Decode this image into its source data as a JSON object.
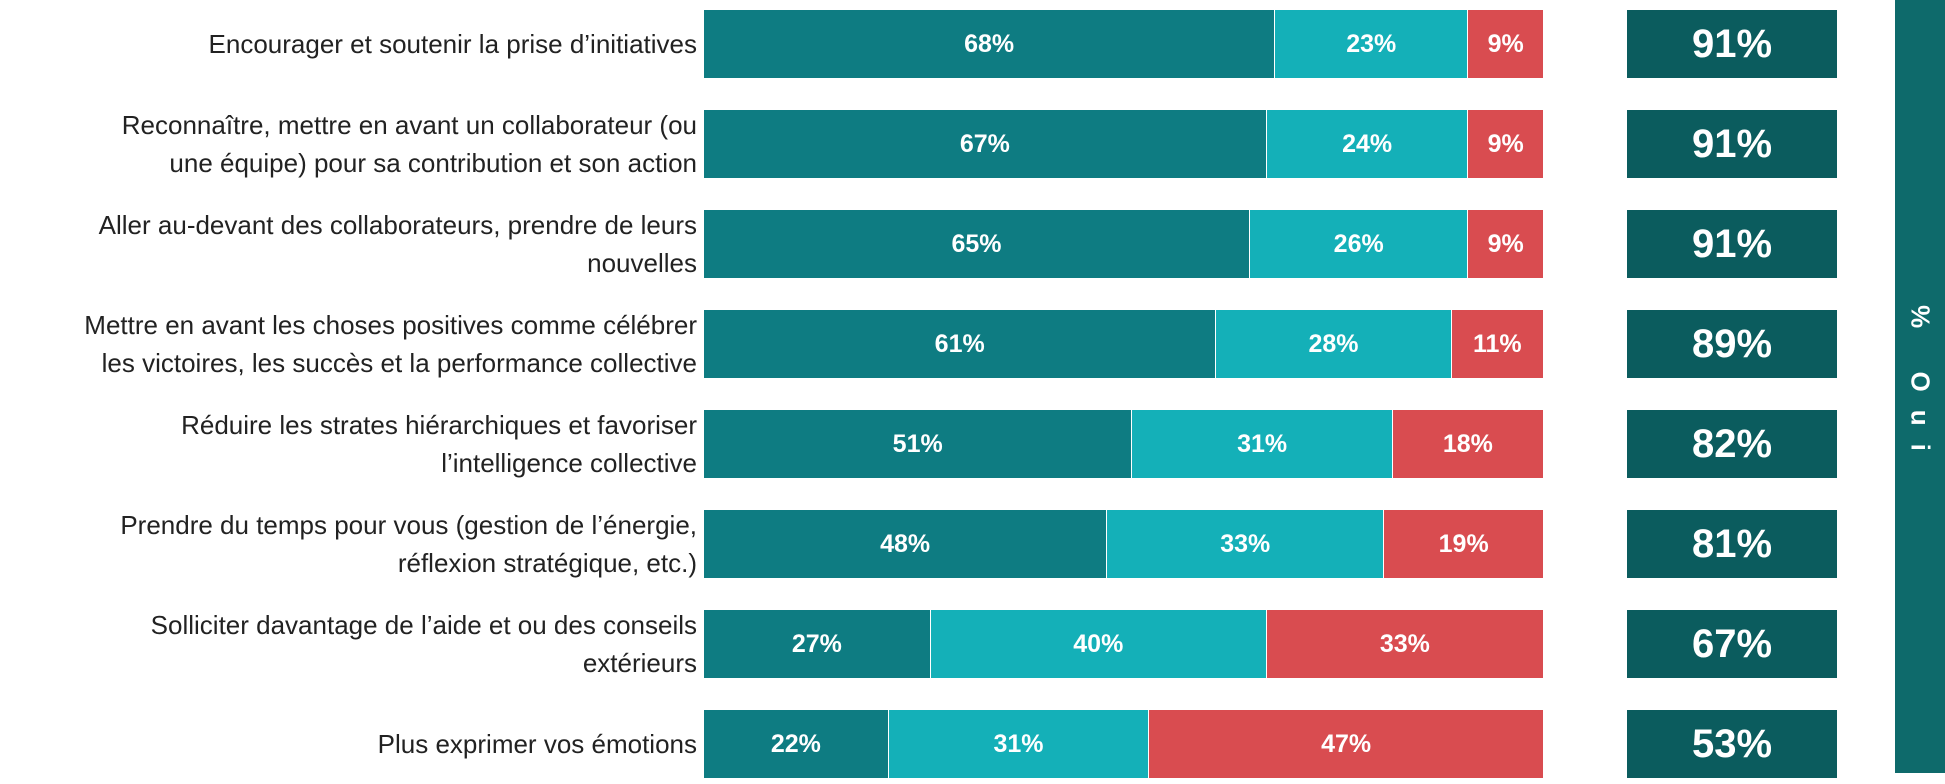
{
  "chart_data": {
    "type": "stacked-bar-horizontal",
    "categories": [
      "Encourager et soutenir la prise d’initiatives",
      "Reconnaître, mettre en avant un collaborateur (ou\nune équipe) pour sa contribution et son action",
      "Aller au-devant des collaborateurs, prendre de leurs\nnouvelles",
      "Mettre en avant les choses positives comme célébrer\nles victoires, les succès et la performance collective",
      "Réduire les strates hiérarchiques et favoriser\nl’intelligence collective",
      "Prendre du temps pour vous (gestion de l’énergie,\nréflexion stratégique, etc.)",
      "Solliciter davantage de l’aide et ou des conseils\nextérieurs",
      "Plus exprimer vos émotions"
    ],
    "series": [
      {
        "color": "#0e7c82",
        "values": [
          68,
          67,
          65,
          61,
          51,
          48,
          27,
          22
        ],
        "value_labels": [
          "68%",
          "67%",
          "65%",
          "61%",
          "51%",
          "48%",
          "27%",
          "22%"
        ]
      },
      {
        "color": "#14b0b8",
        "values": [
          23,
          24,
          26,
          28,
          31,
          33,
          40,
          31
        ],
        "value_labels": [
          "23%",
          "24%",
          "26%",
          "28%",
          "31%",
          "33%",
          "40%",
          "31%"
        ]
      },
      {
        "color": "#d94c50",
        "values": [
          9,
          9,
          9,
          11,
          18,
          19,
          33,
          47
        ],
        "value_labels": [
          "9%",
          "9%",
          "9%",
          "11%",
          "18%",
          "19%",
          "33%",
          "47%"
        ]
      }
    ],
    "totals": {
      "title": "% Oui",
      "color": "#0b5c5e",
      "values": [
        91,
        91,
        91,
        89,
        82,
        81,
        67,
        53
      ],
      "value_labels": [
        "91%",
        "91%",
        "91%",
        "89%",
        "82%",
        "81%",
        "67%",
        "53%"
      ]
    }
  }
}
